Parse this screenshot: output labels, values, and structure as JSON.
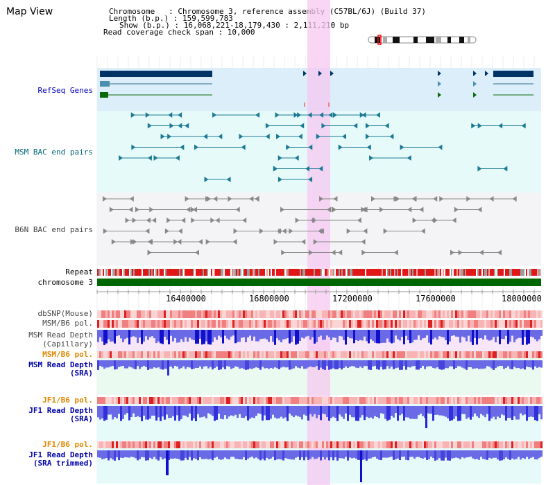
{
  "header": {
    "title": "Map View",
    "info_lines": [
      "Chromosome   : Chromosome 3, reference assembly (C57BL/6J) (Build 37)",
      "Length (b.p.) : 159,599,783",
      "Show (b.p.) : 16,068,221-18,179,430 : 2,111,210 bp",
      "Read coverage check span : 10,000"
    ]
  },
  "labels": {
    "refseq": "RefSeq Genes",
    "msm_bac": "MSM BAC end pairs",
    "b6n_bac": "B6N BAC end pairs",
    "repeat": "Repeat",
    "chromosome": "chromosome 3",
    "dbsnp": "dbSNP(Mouse)",
    "msm_b6_pol_1": "MSM/B6 pol.",
    "msm_depth_cap_1": "MSM Read Depth",
    "msm_depth_cap_2": "(Capillary)",
    "msm_b6_pol_2": "MSM/B6 pol.",
    "msm_depth_sra_1": "MSM Read Depth",
    "msm_depth_sra_2": "(SRA)",
    "jf1_pol_1": "JF1/B6 pol.",
    "jf1_depth_sra_1": "JF1 Read Depth",
    "jf1_depth_sra_2": "(SRA)",
    "jf1_pol_2": "JF1/B6 pol.",
    "jf1_depth_trim_1": "JF1 Read Depth",
    "jf1_depth_trim_2": "(SRA trimmed)"
  },
  "axis": {
    "ticks": [
      "16400000",
      "16800000",
      "17200000",
      "17600000",
      "18000000"
    ]
  },
  "colors": {
    "refseq_bg": "#dceefa",
    "msm_bg": "#e6fafa",
    "b6n_bg": "#f4f4f6",
    "highlight": "#f6c8f0",
    "chromosome": "#006600",
    "repeat_red": "#e01818",
    "msm_label": "#006677",
    "refseq_label": "#0000bb",
    "pol_label_orange": "#e08800",
    "depth_label_blue": "#0000aa"
  }
}
